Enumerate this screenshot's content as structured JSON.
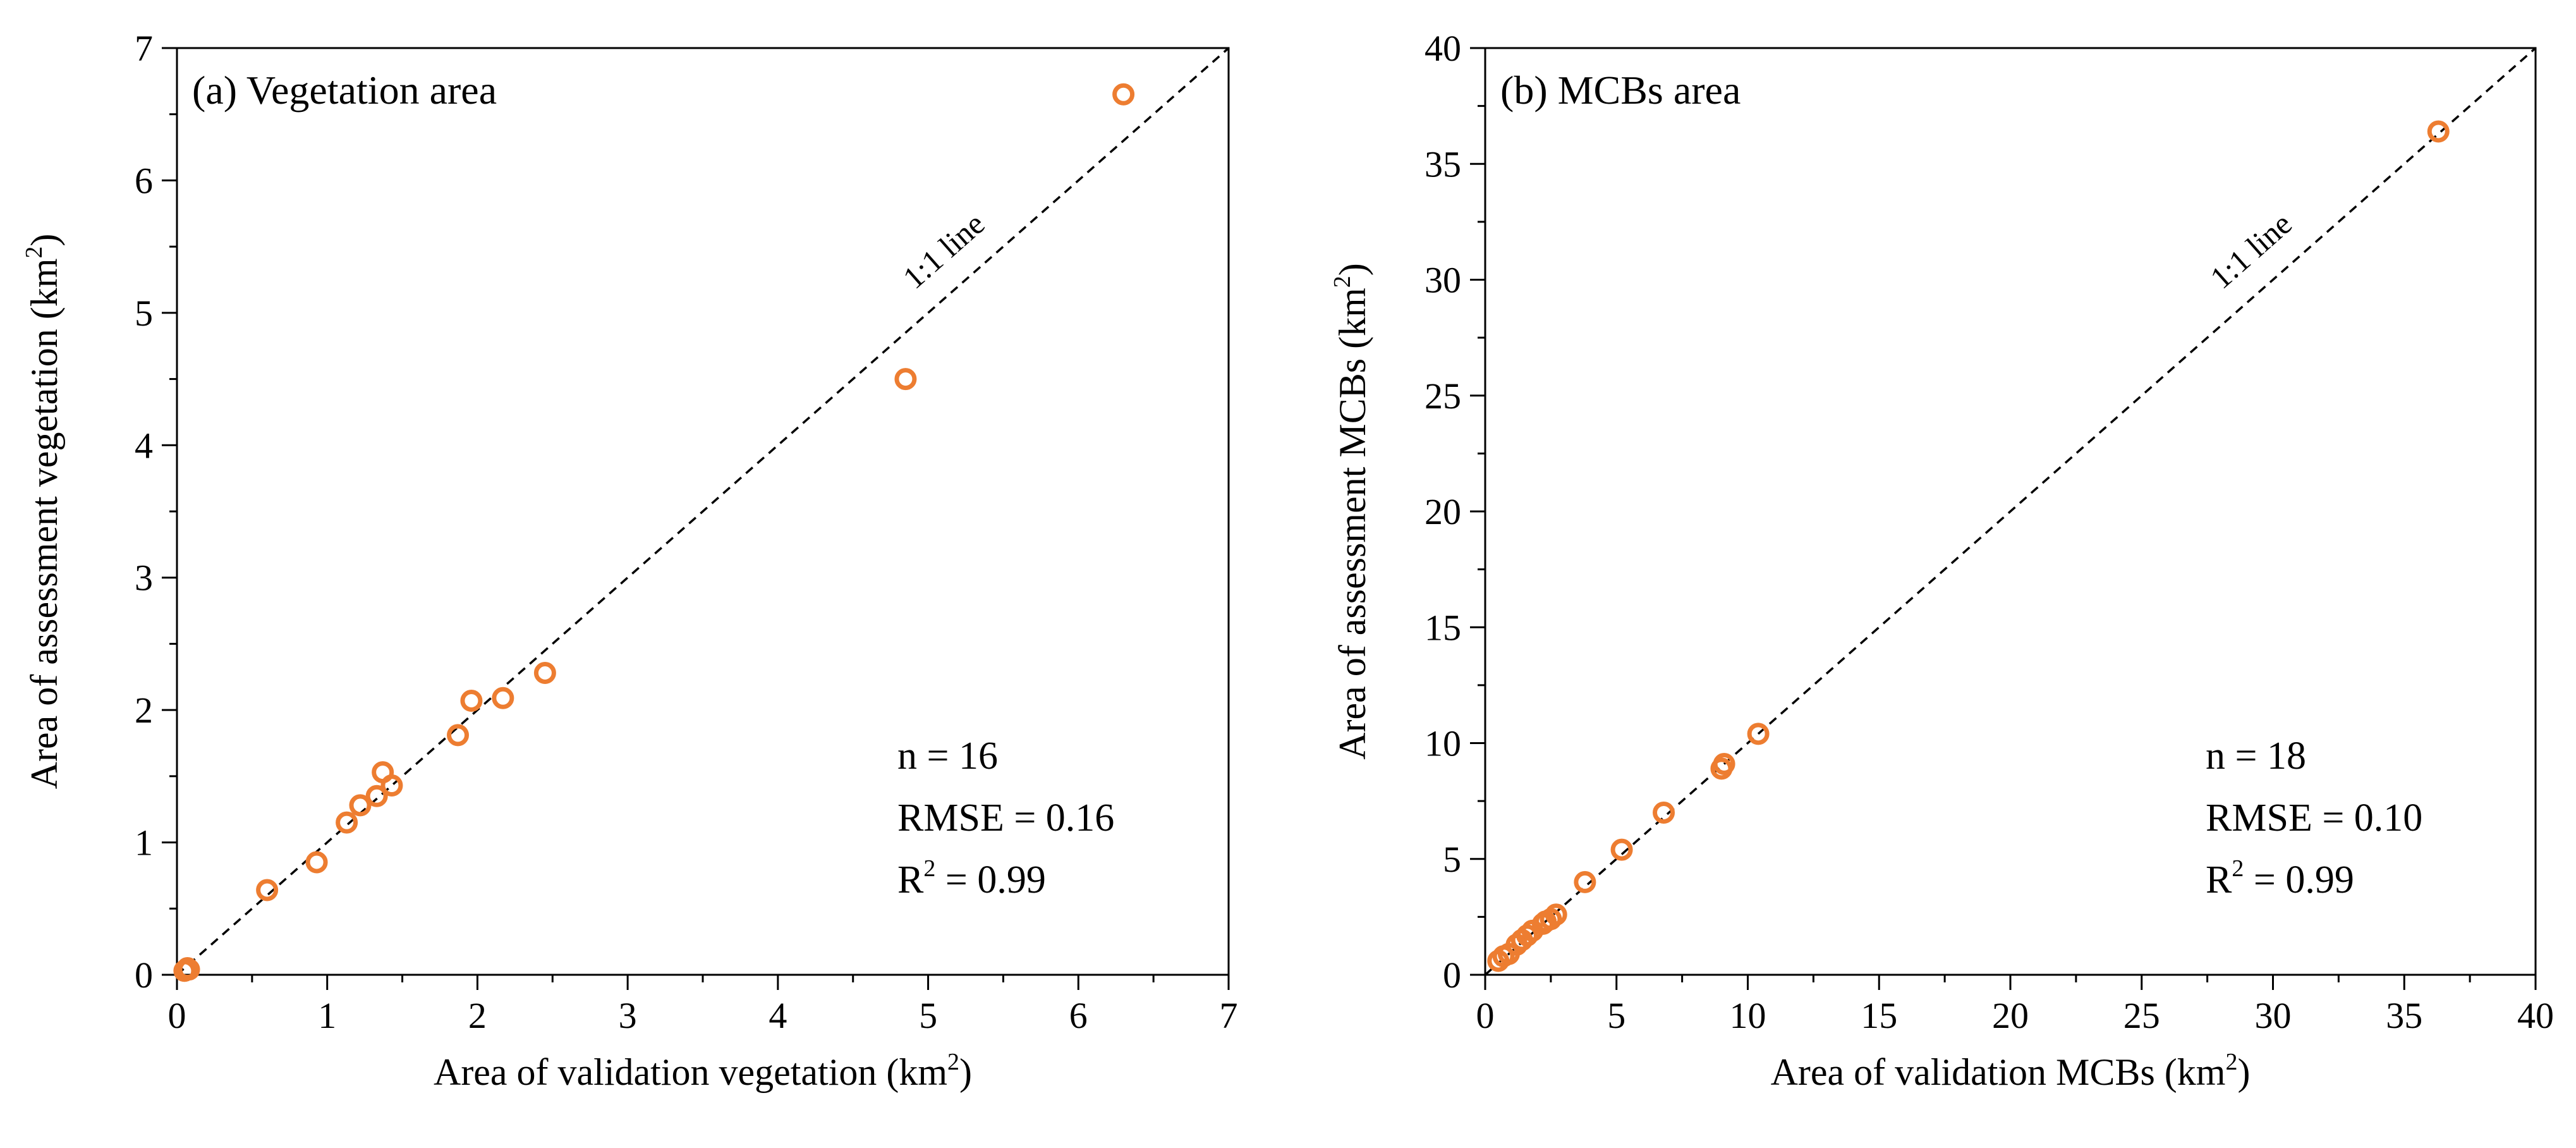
{
  "chart_data": [
    {
      "type": "scatter",
      "panel_id": "a",
      "title": "(a) Vegetation area",
      "xlabel_pre": "Area of validation vegetation (km",
      "ylabel_pre": "Area of assessment vegetation (km",
      "unit_exp": "2",
      "label_post": ")",
      "xlim": [
        0,
        7
      ],
      "ylim": [
        0,
        7
      ],
      "xticks": [
        0,
        1,
        2,
        3,
        4,
        5,
        6,
        7
      ],
      "yticks": [
        0,
        1,
        2,
        3,
        4,
        5,
        6,
        7
      ],
      "minor_step": 0.5,
      "reference_line_label": "1:1 line",
      "stats": {
        "n_text": "n = 16",
        "rmse_text": "RMSE = 0.16",
        "r2_pre": "R",
        "r2_exp": "2",
        "r2_post": " = 0.99"
      },
      "marker_color": "#ED7D31",
      "x": [
        0.05,
        0.08,
        0.6,
        0.93,
        1.13,
        1.22,
        1.33,
        1.37,
        1.43,
        1.87,
        1.96,
        2.17,
        2.45,
        4.85,
        6.3,
        0.07
      ],
      "y": [
        0.03,
        0.04,
        0.64,
        0.85,
        1.15,
        1.28,
        1.35,
        1.53,
        1.43,
        1.81,
        2.07,
        2.09,
        2.28,
        4.5,
        6.65,
        0.05
      ]
    },
    {
      "type": "scatter",
      "panel_id": "b",
      "title": "(b) MCBs area",
      "xlabel_pre": "Area of validation MCBs (km",
      "ylabel_pre": "Area of assessment MCBs (km",
      "unit_exp": "2",
      "label_post": ")",
      "xlim": [
        0,
        40
      ],
      "ylim": [
        0,
        40
      ],
      "xticks": [
        0,
        5,
        10,
        15,
        20,
        25,
        30,
        35,
        40
      ],
      "yticks": [
        0,
        5,
        10,
        15,
        20,
        25,
        30,
        35,
        40
      ],
      "minor_step": 2.5,
      "reference_line_label": "1:1 line",
      "stats": {
        "n_text": "n = 18",
        "rmse_text": "RMSE = 0.10",
        "r2_pre": "R",
        "r2_exp": "2",
        "r2_post": " = 0.99"
      },
      "marker_color": "#ED7D31",
      "x": [
        0.5,
        0.7,
        0.9,
        1.2,
        1.4,
        1.6,
        2.2,
        2.3,
        2.7,
        3.8,
        5.2,
        6.8,
        9.0,
        9.1,
        10.4,
        36.3,
        1.8,
        2.5
      ],
      "y": [
        0.6,
        0.8,
        0.9,
        1.3,
        1.5,
        1.7,
        2.2,
        2.3,
        2.6,
        4.0,
        5.4,
        7.0,
        8.9,
        9.1,
        10.4,
        36.4,
        1.9,
        2.4
      ]
    }
  ]
}
